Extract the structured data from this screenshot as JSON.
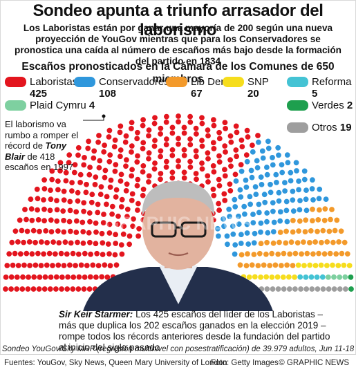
{
  "title": "Sondeo apunta a triunfo arrasador del laborismo",
  "intro": "Los Laboristas están por ganar una mayoría de 200 según una nueva proyección de YouGov mientras que para los Conservadores se pronostica una caída al número de escaños más bajo desde la formación del partido en 1834",
  "subtitle": "Escaños pronosticados en la Cámara de los Comunes de 650 miembros",
  "side_note": {
    "line1": "El laborismo va rumbo a romper el récord de",
    "name": "Tony Blair",
    "line2": "de 418 escaños en 1997"
  },
  "caption": {
    "name": "Sir Keir Starmer:",
    "text": "Los 425 escaños del líder de los Laboristas – más que duplica los 202 escaños ganados en la elección 2019 – rompe todos los récords anteriores desde la fundación del partido al inicio del siglo pasado"
  },
  "methodology": "Sondeo YouGov/Sky MRP (regresión multinivel con posestratificación) de 39.979 adultos, Jun 11-18",
  "footer": {
    "sources": "Fuentes: YouGov, Sky News, Queen Mary University of London",
    "photo": "Foto: Getty Images",
    "copyright": "© GRAPHIC NEWS"
  },
  "watermark": "GRAPHIC NEWS",
  "chart_data": {
    "type": "parliament",
    "total_seats": 650,
    "series": [
      {
        "name": "Laboristas",
        "value": 425,
        "color": "#e3151e"
      },
      {
        "name": "Conservadores",
        "value": 108,
        "color": "#2f97dc"
      },
      {
        "name": "Lib Dem",
        "value": 67,
        "color": "#f39a2b"
      },
      {
        "name": "SNP",
        "value": 20,
        "color": "#f6dd1d"
      },
      {
        "name": "Reforma",
        "value": 5,
        "color": "#44c3d4"
      },
      {
        "name": "Plaid Cymru",
        "value": 4,
        "color": "#7ed0a0"
      },
      {
        "name": "Verdes",
        "value": 2,
        "color": "#1e9f4e"
      },
      {
        "name": "Otros",
        "value": 19,
        "color": "#9e9e9e"
      }
    ]
  }
}
